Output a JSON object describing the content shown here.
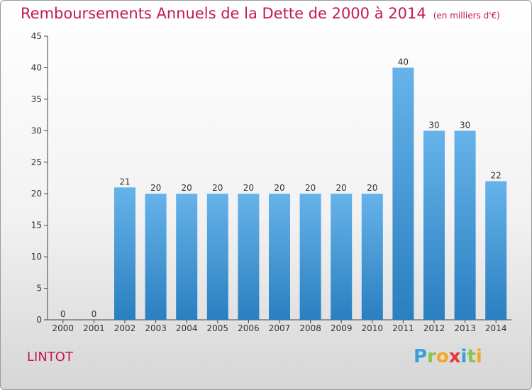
{
  "title": "Remboursements Annuels de la Dette de 2000 à 2014",
  "subtitle": "(en milliers d'€)",
  "city": "LINTOT",
  "logo": {
    "letters": [
      "P",
      "r",
      "o",
      "x",
      "i",
      "t",
      "i"
    ],
    "colors": [
      "#3aa0dc",
      "#8bc34a",
      "#f5a623",
      "#e53935",
      "#3aa0dc",
      "#8bc34a",
      "#f5a623"
    ]
  },
  "colors": {
    "bar_top": "#66b3ea",
    "bar_bottom": "#2a7fc0",
    "title": "#c2185b"
  },
  "chart_data": {
    "type": "bar",
    "categories": [
      "2000",
      "2001",
      "2002",
      "2003",
      "2004",
      "2005",
      "2006",
      "2007",
      "2008",
      "2009",
      "2010",
      "2011",
      "2012",
      "2013",
      "2014"
    ],
    "values": [
      0,
      0,
      21,
      20,
      20,
      20,
      20,
      20,
      20,
      20,
      20,
      40,
      30,
      30,
      22
    ],
    "ylim": [
      0,
      45
    ],
    "yticks": [
      0,
      5,
      10,
      15,
      20,
      25,
      30,
      35,
      40,
      45
    ],
    "grid": false,
    "legend": "none"
  }
}
